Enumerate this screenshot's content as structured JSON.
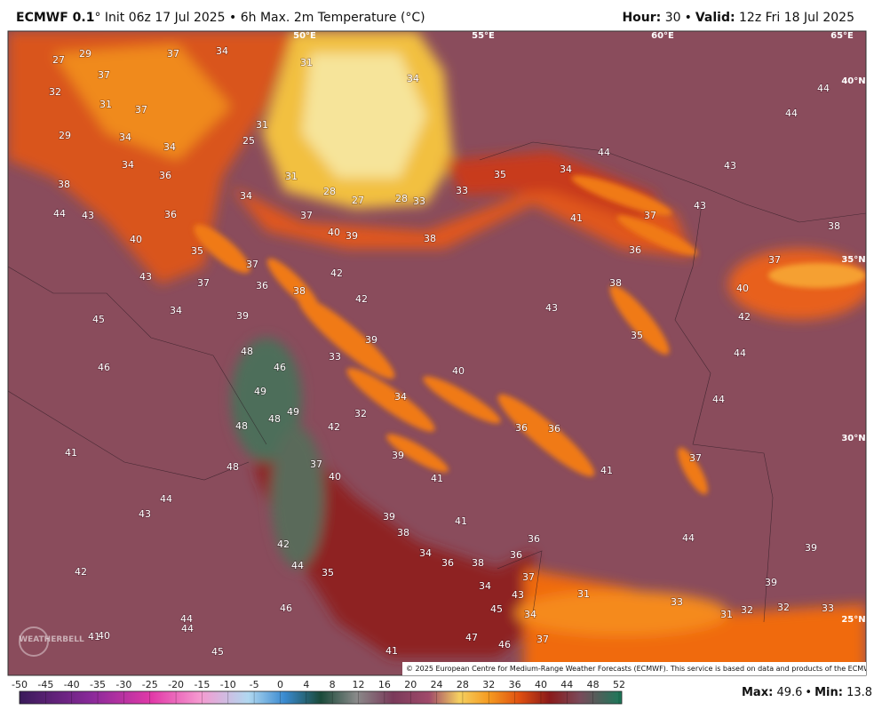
{
  "header": {
    "model": "ECMWF 0.1",
    "description": "° Init 06z 17 Jul 2025 • 6h Max. 2m Temperature (°C)",
    "hour_label": "Hour:",
    "hour": 30,
    "separator": "•",
    "valid_label": "Valid:",
    "valid": "12z Fri 18 Jul 2025"
  },
  "map": {
    "longitude_labels": [
      "50°E",
      "55°E",
      "60°E",
      "65°E"
    ],
    "latitude_labels": [
      "40°N",
      "35°N",
      "30°N",
      "25°N"
    ],
    "temperature_labels": [
      27,
      29,
      37,
      34,
      37,
      32,
      31,
      37,
      29,
      34,
      34,
      34,
      36,
      38,
      44,
      43,
      36,
      40,
      35,
      43,
      37,
      34,
      37,
      36,
      38,
      39,
      31,
      34,
      25,
      31,
      34,
      31,
      28,
      27,
      28,
      33,
      33,
      35,
      34,
      44,
      37,
      40,
      39,
      38,
      42,
      42,
      41,
      37,
      36,
      43,
      43,
      44,
      44,
      38,
      37,
      40,
      42,
      38,
      43,
      35,
      44,
      44,
      37,
      41,
      39,
      48,
      46,
      33,
      40,
      34,
      49,
      49,
      48,
      32,
      48,
      42,
      36,
      36,
      48,
      37,
      40,
      39,
      41,
      45,
      46,
      41,
      44,
      43,
      42,
      39,
      38,
      41,
      34,
      36,
      38,
      36,
      36,
      42,
      44,
      35,
      37,
      34,
      43,
      31,
      44,
      39,
      39,
      45,
      34,
      33,
      31,
      32,
      32,
      33,
      46,
      44,
      44,
      41,
      40,
      47,
      46,
      37,
      45,
      41
    ],
    "logo": "WEATHERBELL",
    "credit": "© 2025 European Centre for Medium-Range Weather Forecasts (ECMWF). This service is based on data and products of the ECMWF."
  },
  "colorbar": {
    "ticks": [
      -50,
      -45,
      -40,
      -35,
      -30,
      -25,
      -20,
      -15,
      -10,
      -5,
      0,
      4,
      8,
      12,
      16,
      20,
      24,
      28,
      32,
      36,
      40,
      44,
      48,
      52
    ]
  },
  "footer": {
    "max_label": "Max:",
    "max": 49.6,
    "separator": "•",
    "min_label": "Min:",
    "min": 13.8
  }
}
